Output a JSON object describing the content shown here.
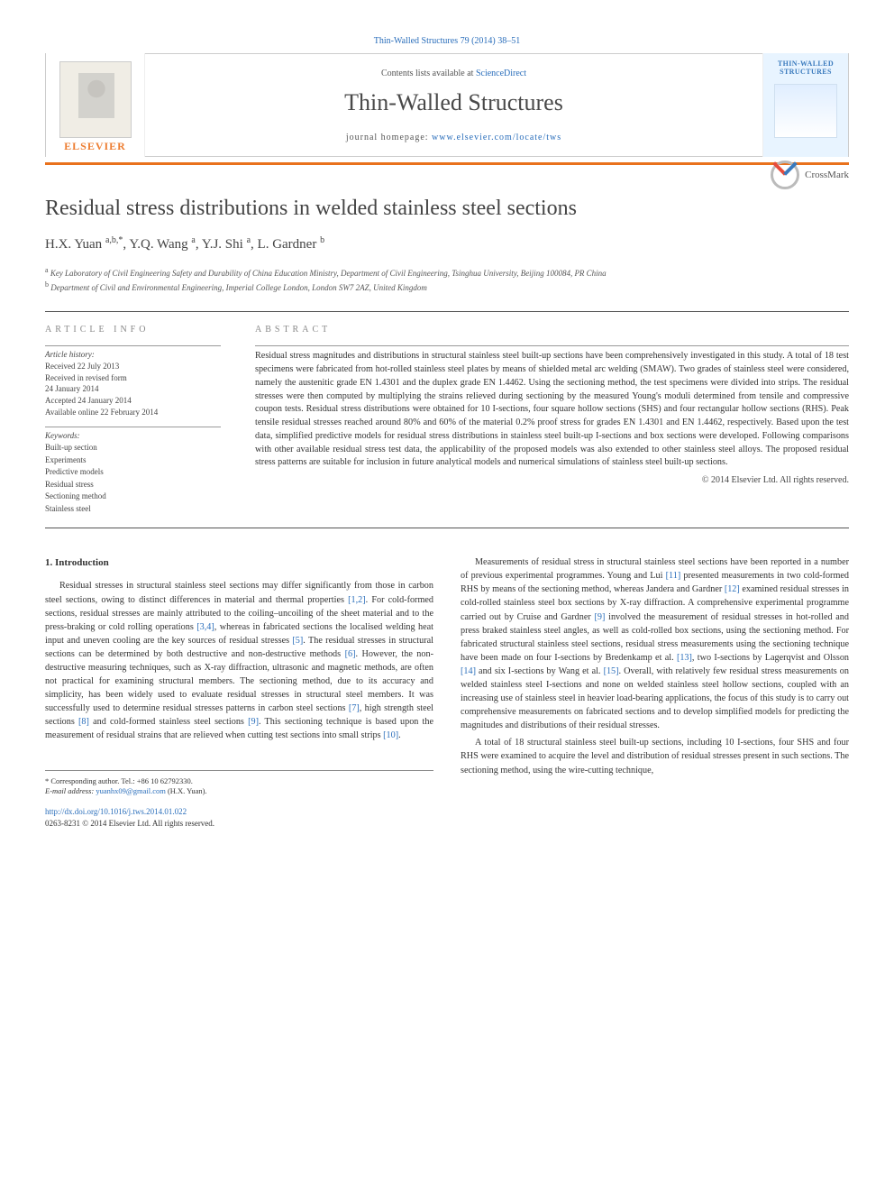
{
  "top_link": "Thin-Walled Structures 79 (2014) 38–51",
  "header": {
    "elsevier_label": "ELSEVIER",
    "contents_prefix": "Contents lists available at ",
    "contents_link": "ScienceDirect",
    "journal_title": "Thin-Walled Structures",
    "homepage_prefix": "journal homepage: ",
    "homepage_link": "www.elsevier.com/locate/tws",
    "cover_title": "THIN-WALLED STRUCTURES"
  },
  "colors": {
    "orange_rule": "#e9711c",
    "link_blue": "#2a6ebb",
    "text_gray": "#333333",
    "light_gray_heading": "#888888",
    "divider": "#555555",
    "background": "#ffffff",
    "elsevier_orange": "#ed7d31",
    "cover_bg": "#e8f4ff"
  },
  "article": {
    "title": "Residual stress distributions in welded stainless steel sections",
    "crossmark": "CrossMark",
    "authors_html": "H.X. Yuan <sup>a,b,*</sup>, Y.Q. Wang <sup>a</sup>, Y.J. Shi <sup>a</sup>, L. Gardner <sup>b</sup>",
    "affiliation_a": "Key Laboratory of Civil Engineering Safety and Durability of China Education Ministry, Department of Civil Engineering, Tsinghua University, Beijing 100084, PR China",
    "affiliation_b": "Department of Civil and Environmental Engineering, Imperial College London, London SW7 2AZ, United Kingdom"
  },
  "article_info": {
    "heading": "ARTICLE INFO",
    "history_label": "Article history:",
    "history": [
      "Received 22 July 2013",
      "Received in revised form",
      "24 January 2014",
      "Accepted 24 January 2014",
      "Available online 22 February 2014"
    ],
    "keywords_label": "Keywords:",
    "keywords": [
      "Built-up section",
      "Experiments",
      "Predictive models",
      "Residual stress",
      "Sectioning method",
      "Stainless steel"
    ]
  },
  "abstract": {
    "heading": "ABSTRACT",
    "text": "Residual stress magnitudes and distributions in structural stainless steel built-up sections have been comprehensively investigated in this study. A total of 18 test specimens were fabricated from hot-rolled stainless steel plates by means of shielded metal arc welding (SMAW). Two grades of stainless steel were considered, namely the austenitic grade EN 1.4301 and the duplex grade EN 1.4462. Using the sectioning method, the test specimens were divided into strips. The residual stresses were then computed by multiplying the strains relieved during sectioning by the measured Young's moduli determined from tensile and compressive coupon tests. Residual stress distributions were obtained for 10 I-sections, four square hollow sections (SHS) and four rectangular hollow sections (RHS). Peak tensile residual stresses reached around 80% and 60% of the material 0.2% proof stress for grades EN 1.4301 and EN 1.4462, respectively. Based upon the test data, simplified predictive models for residual stress distributions in stainless steel built-up I-sections and box sections were developed. Following comparisons with other available residual stress test data, the applicability of the proposed models was also extended to other stainless steel alloys. The proposed residual stress patterns are suitable for inclusion in future analytical models and numerical simulations of stainless steel built-up sections.",
    "copyright": "© 2014 Elsevier Ltd. All rights reserved."
  },
  "body": {
    "section1_heading": "1. Introduction",
    "para1": "Residual stresses in structural stainless steel sections may differ significantly from those in carbon steel sections, owing to distinct differences in material and thermal properties ",
    "cite1": "[1,2]",
    "para1b": ". For cold-formed sections, residual stresses are mainly attributed to the coiling–uncoiling of the sheet material and to the press-braking or cold rolling operations ",
    "cite2": "[3,4]",
    "para1c": ", whereas in fabricated sections the localised welding heat input and uneven cooling are the key sources of residual stresses ",
    "cite3": "[5]",
    "para1d": ". The residual stresses in structural sections can be determined by both destructive and non-destructive methods ",
    "cite4": "[6]",
    "para1e": ". However, the non-destructive measuring techniques, such as X-ray diffraction, ultrasonic and magnetic methods, are often not practical for examining structural members. The sectioning method, due to its accuracy and simplicity, has been widely used to evaluate residual stresses in structural steel members. It was successfully used to determine residual stresses patterns in carbon steel sections ",
    "cite5": "[7]",
    "para1f": ", high strength steel sections ",
    "cite6": "[8]",
    "para1g": " and cold-formed stainless steel sections ",
    "cite7": "[9]",
    "para1h": ". This sectioning technique is based upon the measurement of residual strains that are relieved when cutting test sections into small strips ",
    "cite8": "[10]",
    "para1i": ".",
    "para2a": "Measurements of residual stress in structural stainless steel sections have been reported in a number of previous experimental programmes. Young and Lui ",
    "cite9": "[11]",
    "para2b": " presented measurements in two cold-formed RHS by means of the sectioning method, whereas Jandera and Gardner ",
    "cite10": "[12]",
    "para2c": " examined residual stresses in cold-rolled stainless steel box sections by X-ray diffraction. A comprehensive experimental programme carried out by Cruise and Gardner ",
    "cite11": "[9]",
    "para2d": " involved the measurement of residual stresses in hot-rolled and press braked stainless steel angles, as well as cold-rolled box sections, using the sectioning method. For fabricated structural stainless steel sections, residual stress measurements using the sectioning technique have been made on four I-sections by Bredenkamp et al. ",
    "cite12": "[13]",
    "para2e": ", two I-sections by Lagerqvist and Olsson ",
    "cite13": "[14]",
    "para2f": " and six I-sections by Wang et al. ",
    "cite14": "[15]",
    "para2g": ". Overall, with relatively few residual stress measurements on welded stainless steel I-sections and none on welded stainless steel hollow sections, coupled with an increasing use of stainless steel in heavier load-bearing applications, the focus of this study is to carry out comprehensive measurements on fabricated sections and to develop simplified models for predicting the magnitudes and distributions of their residual stresses.",
    "para3": "A total of 18 structural stainless steel built-up sections, including 10 I-sections, four SHS and four RHS were examined to acquire the level and distribution of residual stresses present in such sections. The sectioning method, using the wire-cutting technique,"
  },
  "footnote": {
    "corr": "* Corresponding author. Tel.: +86 10 62792330.",
    "email_label": "E-mail address: ",
    "email": "yuanhx09@gmail.com",
    "email_suffix": " (H.X. Yuan)."
  },
  "footer": {
    "doi": "http://dx.doi.org/10.1016/j.tws.2014.01.022",
    "issn_copyright": "0263-8231 © 2014 Elsevier Ltd. All rights reserved."
  }
}
